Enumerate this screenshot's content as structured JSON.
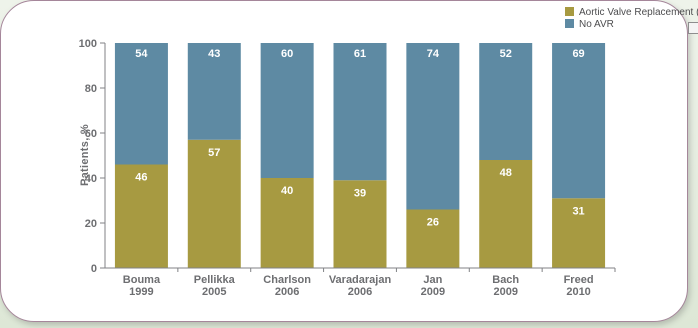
{
  "chart_data": {
    "type": "bar",
    "stacked": true,
    "percent": true,
    "categories": [
      [
        "Bouma",
        "1999"
      ],
      [
        "Pellikka",
        "2005"
      ],
      [
        "Charlson",
        "2006"
      ],
      [
        "Varadarajan",
        "2006"
      ],
      [
        "Jan",
        "2009"
      ],
      [
        "Bach",
        "2009"
      ],
      [
        "Freed",
        "2010"
      ]
    ],
    "series": [
      {
        "name": "Aortic Valve Replacement (AVR)",
        "color": "#a79a41",
        "values": [
          46,
          57,
          40,
          39,
          26,
          48,
          31
        ]
      },
      {
        "name": "No AVR",
        "color": "#5e8aa3",
        "values": [
          54,
          43,
          60,
          61,
          74,
          52,
          69
        ]
      }
    ],
    "ylabel": "Patients, %",
    "xlabel": "",
    "title": "",
    "ylim": [
      0,
      100
    ],
    "yticks": [
      0,
      20,
      40,
      60,
      80,
      100
    ],
    "grid": false,
    "legend_position": "top-right"
  }
}
